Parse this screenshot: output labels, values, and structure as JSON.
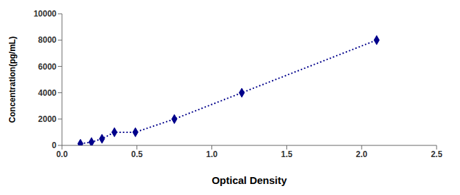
{
  "chart_data": {
    "type": "line",
    "x": [
      0.123,
      0.197,
      0.267,
      0.35,
      0.49,
      0.75,
      1.2,
      2.1
    ],
    "values": [
      125,
      250,
      500,
      1000,
      1000,
      2000,
      4000,
      8000
    ],
    "color": "#00008B",
    "marker": "diamond",
    "line_style": "dotted",
    "xlabel": "Optical Density",
    "ylabel": "Concentration(pg/mL)",
    "xlim": [
      0,
      2.5
    ],
    "ylim": [
      0,
      10000
    ],
    "xticks": [
      {
        "value": 0,
        "label": "0.0"
      },
      0.5,
      {
        "value": 1,
        "label": "1.0"
      },
      1.5,
      {
        "value": 2,
        "label": "2.0"
      },
      2.5
    ],
    "yticks": [
      0,
      2000,
      4000,
      6000,
      8000,
      10000
    ],
    "grid": false
  }
}
